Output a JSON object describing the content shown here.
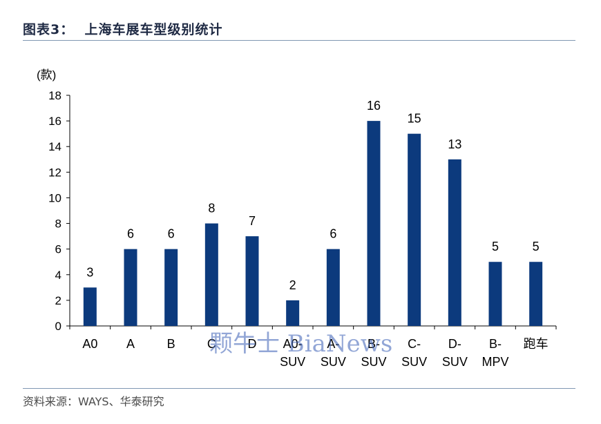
{
  "header": {
    "title": "图表3：  上海车展车型级别统计"
  },
  "chart_data": {
    "type": "bar",
    "unit_label": "(款)",
    "categories": [
      [
        "A0"
      ],
      [
        "A"
      ],
      [
        "B"
      ],
      [
        "C"
      ],
      [
        "D"
      ],
      [
        "A0-",
        "SUV"
      ],
      [
        "A-",
        "SUV"
      ],
      [
        "B-",
        "SUV"
      ],
      [
        "C-",
        "SUV"
      ],
      [
        "D-",
        "SUV"
      ],
      [
        "B-",
        "MPV"
      ],
      [
        "跑车"
      ]
    ],
    "values": [
      3,
      6,
      6,
      8,
      7,
      2,
      6,
      16,
      15,
      13,
      5,
      5
    ],
    "ylim": [
      0,
      18
    ],
    "yticks": [
      0,
      2,
      4,
      6,
      8,
      10,
      12,
      14,
      16,
      18
    ],
    "bar_color": "#0c3a7d",
    "grid": false,
    "data_labels": true
  },
  "watermark": {
    "text": "颗牛士 BiaNews"
  },
  "footer": {
    "source": "资料来源：WAYS、华泰研究"
  }
}
